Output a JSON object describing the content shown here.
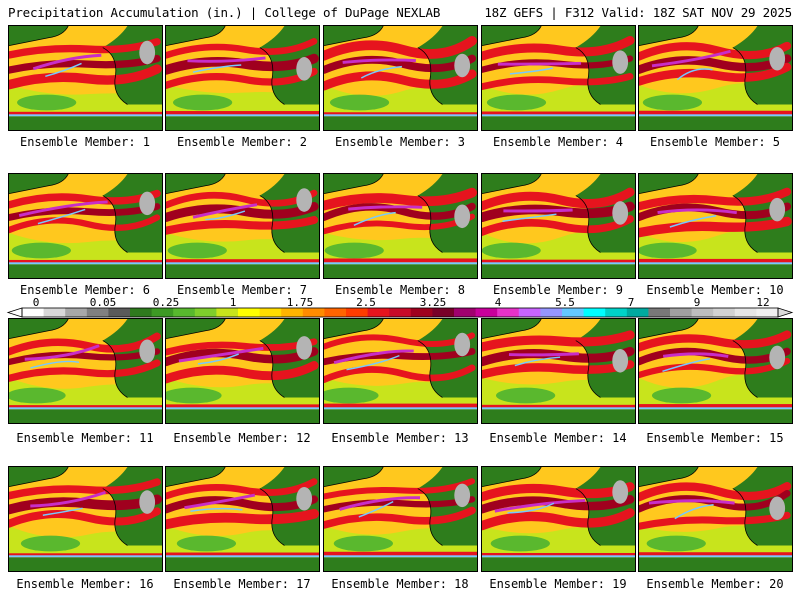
{
  "header": {
    "title": "Precipitation Accumulation (in.) | College of DuPage NEXLAB",
    "run_info": "18Z GEFS | F312 Valid: 18Z SAT NOV 29 2025"
  },
  "members": [
    {
      "label": "Ensemble Member: 1"
    },
    {
      "label": "Ensemble Member: 2"
    },
    {
      "label": "Ensemble Member: 3"
    },
    {
      "label": "Ensemble Member: 4"
    },
    {
      "label": "Ensemble Member: 5"
    },
    {
      "label": "Ensemble Member: 6"
    },
    {
      "label": "Ensemble Member: 7"
    },
    {
      "label": "Ensemble Member: 8"
    },
    {
      "label": "Ensemble Member: 9"
    },
    {
      "label": "Ensemble Member: 10"
    },
    {
      "label": "Ensemble Member: 11"
    },
    {
      "label": "Ensemble Member: 12"
    },
    {
      "label": "Ensemble Member: 13"
    },
    {
      "label": "Ensemble Member: 14"
    },
    {
      "label": "Ensemble Member: 15"
    },
    {
      "label": "Ensemble Member: 16"
    },
    {
      "label": "Ensemble Member: 17"
    },
    {
      "label": "Ensemble Member: 18"
    },
    {
      "label": "Ensemble Member: 19"
    },
    {
      "label": "Ensemble Member: 20"
    }
  ],
  "colorbar": {
    "tick_labels": [
      "0",
      "0.05",
      "0.25",
      "1",
      "1.75",
      "2.5",
      "3.25",
      "4",
      "5.5",
      "7",
      "9",
      "12"
    ],
    "colors": [
      "#ffffff",
      "#d8d8d8",
      "#a8a8a8",
      "#808080",
      "#5a5a5a",
      "#2f7a1e",
      "#3d9a24",
      "#58b82e",
      "#7fce2c",
      "#c8e41c",
      "#ffff00",
      "#ffdc00",
      "#ffb400",
      "#ff8c00",
      "#ff6400",
      "#ff3c00",
      "#e6141e",
      "#c80a28",
      "#a0001e",
      "#780028",
      "#a0006e",
      "#c8009b",
      "#e632c8",
      "#c864ff",
      "#9696ff",
      "#64c8ff",
      "#00ffff",
      "#00d2c8",
      "#00aaa0",
      "#787878",
      "#a0a0a0",
      "#bebebe",
      "#d2d2d2",
      "#e6e6e6",
      "#f0f0f0"
    ]
  },
  "map_colors": {
    "ocean_base": "#ffc81e",
    "land": "#2e7d1c",
    "dry": "#5ab82e",
    "light": "#c8e41c",
    "heavy": "#e6141e",
    "extreme": "#a0001e",
    "purple": "#c82ec8",
    "cyan": "#78c8ff",
    "gray": "#b4b4b4"
  }
}
